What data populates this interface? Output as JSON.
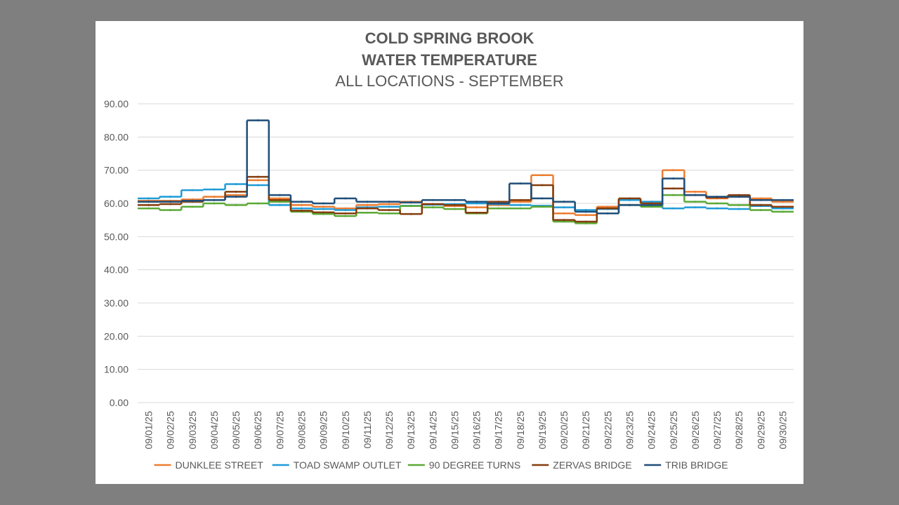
{
  "chart_data": {
    "type": "line",
    "title": "COLD SPRING BROOK",
    "title_line2": "WATER TEMPERATURE",
    "subtitle": "ALL LOCATIONS - SEPTEMBER",
    "xlabel": "",
    "ylabel": "",
    "ylim": [
      0,
      90
    ],
    "yticks": [
      "0.00",
      "10.00",
      "20.00",
      "30.00",
      "40.00",
      "50.00",
      "60.00",
      "70.00",
      "80.00",
      "90.00"
    ],
    "categories": [
      "09/01/25",
      "09/02/25",
      "09/03/25",
      "09/04/25",
      "09/05/25",
      "09/06/25",
      "09/07/25",
      "09/08/25",
      "09/09/25",
      "09/10/25",
      "09/11/25",
      "09/12/25",
      "09/13/25",
      "09/14/25",
      "09/15/25",
      "09/16/25",
      "09/17/25",
      "09/18/25",
      "09/19/25",
      "09/20/25",
      "09/21/25",
      "09/22/25",
      "09/23/25",
      "09/24/25",
      "09/25/25",
      "09/26/25",
      "09/27/25",
      "09/28/25",
      "09/29/25",
      "09/30/25"
    ],
    "series": [
      {
        "name": "DUNKLEE STREET",
        "color": "#ed7d31",
        "values": [
          60.8,
          60.8,
          61.2,
          62.0,
          62.5,
          67.0,
          61.5,
          59.5,
          59.0,
          58.5,
          59.5,
          59.8,
          60.5,
          59.8,
          59.2,
          58.8,
          59.5,
          60.5,
          68.5,
          57.0,
          56.5,
          59.0,
          61.0,
          60.5,
          70.0,
          63.5,
          61.5,
          62.0,
          61.5,
          60.5
        ]
      },
      {
        "name": "TOAD SWAMP OUTLET",
        "color": "#1f9bd7",
        "values": [
          61.5,
          62.0,
          64.0,
          64.2,
          65.8,
          65.5,
          59.5,
          58.5,
          58.3,
          58.0,
          58.8,
          59.0,
          59.3,
          59.6,
          59.8,
          60.0,
          59.8,
          59.5,
          59.3,
          58.8,
          58.0,
          58.3,
          61.0,
          60.5,
          58.5,
          58.8,
          58.5,
          58.3,
          59.2,
          58.5
        ]
      },
      {
        "name": "90 DEGREE TURNS",
        "color": "#5ba936",
        "values": [
          58.5,
          58.0,
          59.0,
          60.0,
          59.5,
          60.0,
          60.5,
          57.5,
          56.8,
          56.2,
          57.2,
          57.0,
          59.2,
          58.8,
          58.3,
          57.0,
          58.5,
          58.5,
          59.0,
          54.5,
          54.0,
          57.0,
          59.5,
          59.0,
          62.5,
          60.5,
          60.0,
          59.5,
          58.0,
          57.5
        ]
      },
      {
        "name": "ZERVAS BRIDGE",
        "color": "#843c0c",
        "values": [
          59.5,
          59.8,
          60.5,
          61.0,
          63.5,
          68.0,
          61.0,
          57.8,
          57.3,
          57.0,
          58.5,
          58.0,
          56.8,
          59.8,
          59.5,
          57.2,
          60.5,
          61.0,
          65.5,
          55.0,
          54.5,
          58.5,
          61.5,
          60.0,
          64.5,
          62.5,
          61.8,
          62.5,
          59.5,
          59.0
        ]
      },
      {
        "name": "TRIB BRIDGE",
        "color": "#1f4e79",
        "values": [
          60.5,
          60.5,
          60.8,
          61.0,
          62.0,
          85.0,
          62.5,
          60.5,
          60.0,
          61.5,
          60.5,
          60.5,
          60.3,
          61.0,
          61.0,
          60.5,
          60.0,
          66.0,
          61.5,
          60.5,
          57.5,
          57.0,
          59.5,
          59.5,
          67.5,
          62.5,
          62.0,
          62.0,
          61.0,
          61.0
        ]
      }
    ],
    "legend": "bottom"
  }
}
